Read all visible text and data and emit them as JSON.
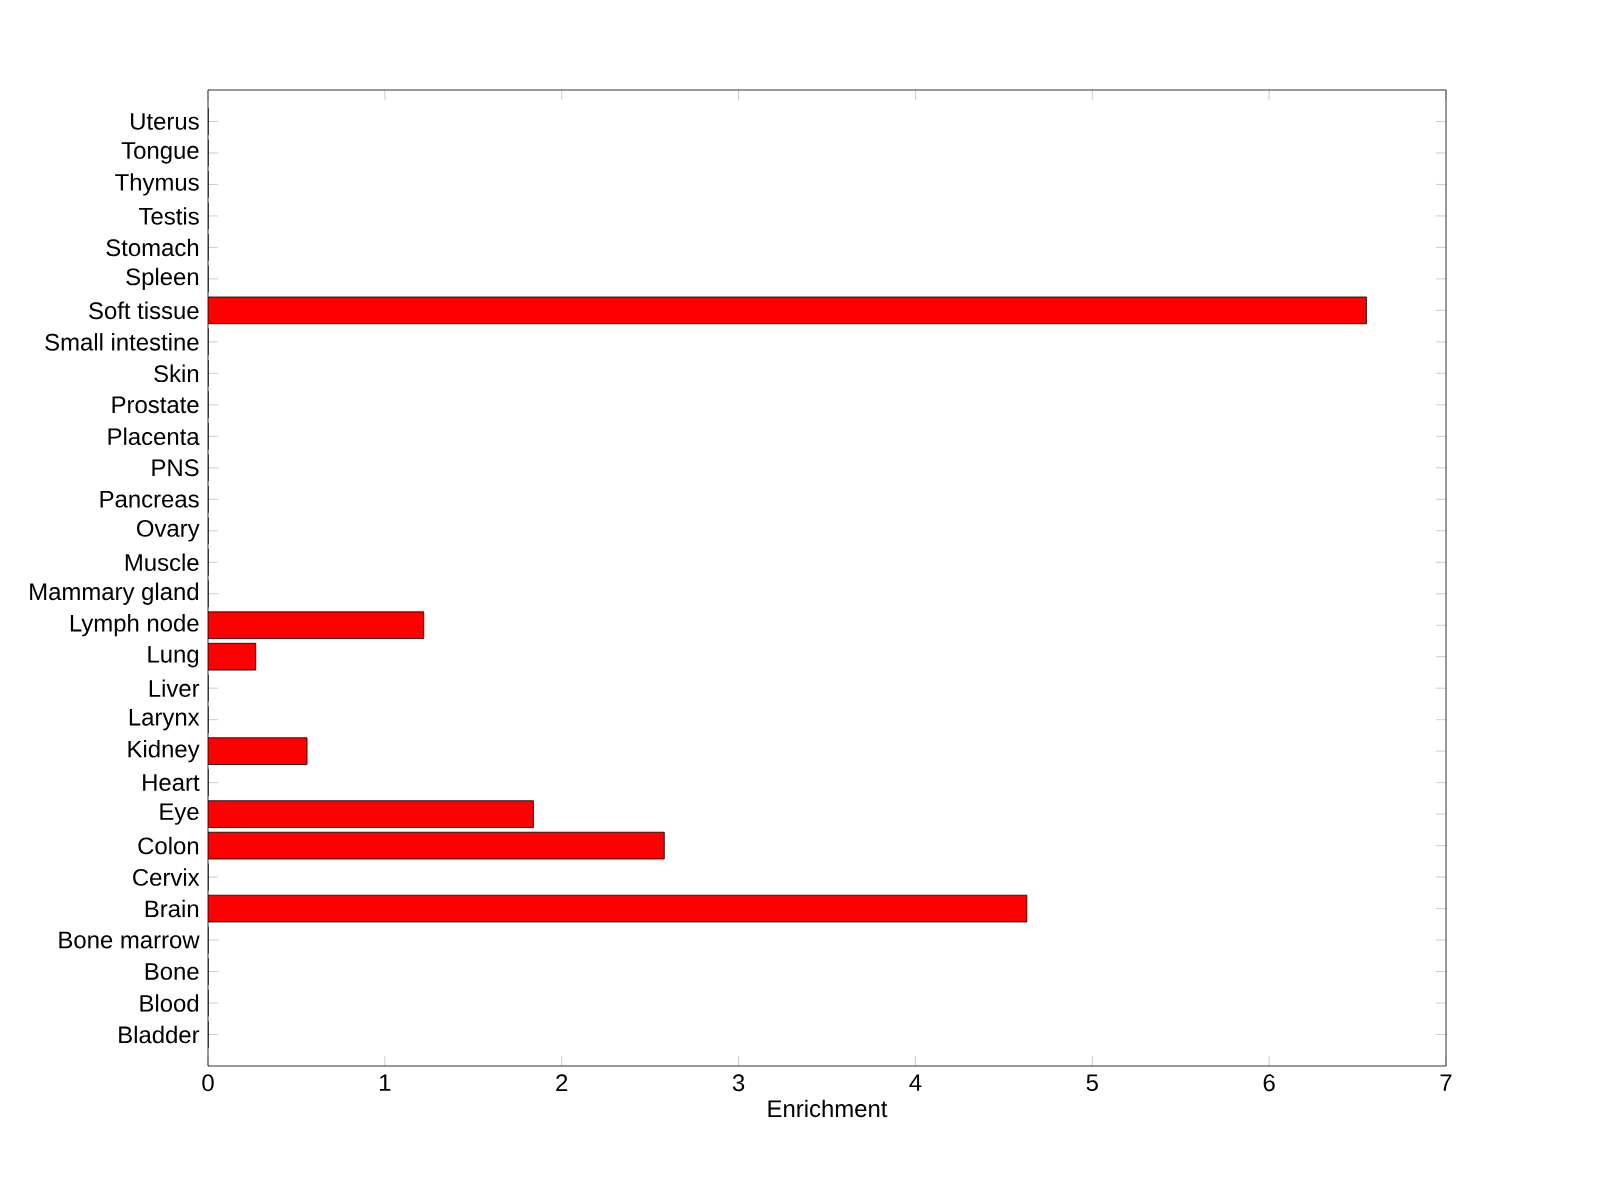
{
  "chart_data": {
    "type": "bar",
    "orientation": "horizontal",
    "xlabel": "Enrichment",
    "categories": [
      "Uterus",
      "Tongue",
      "Thymus",
      "Testis",
      "Stomach",
      "Spleen",
      "Soft tissue",
      "Small intestine",
      "Skin",
      "Prostate",
      "Placenta",
      "PNS",
      "Pancreas",
      "Ovary",
      "Muscle",
      "Mammary gland",
      "Lymph node",
      "Lung",
      "Liver",
      "Larynx",
      "Kidney",
      "Heart",
      "Eye",
      "Colon",
      "Cervix",
      "Brain",
      "Bone marrow",
      "Bone",
      "Blood",
      "Bladder"
    ],
    "values": [
      0,
      0,
      0,
      0,
      0,
      0,
      6.55,
      0,
      0,
      0,
      0,
      0,
      0,
      0,
      0,
      0,
      1.22,
      0.27,
      0,
      0,
      0.56,
      0,
      1.84,
      2.58,
      0,
      4.63,
      0,
      0,
      0,
      0
    ],
    "color": "#ff0000",
    "xlim": [
      0,
      7
    ],
    "xticks": [
      0,
      1,
      2,
      3,
      4,
      5,
      6,
      7
    ]
  }
}
